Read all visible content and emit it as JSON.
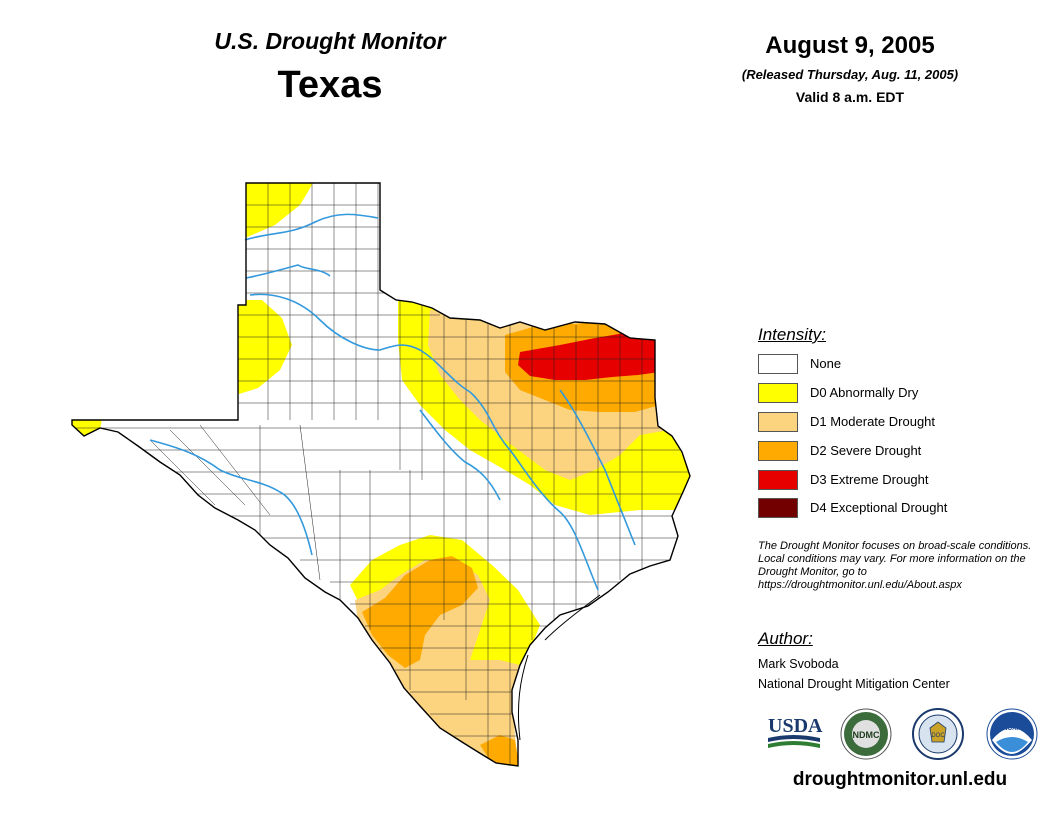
{
  "header": {
    "monitor_title": "U.S. Drought Monitor",
    "state": "Texas",
    "date": "August 9, 2005",
    "released": "(Released Thursday, Aug. 11, 2005)",
    "valid": "Valid 8 a.m. EDT"
  },
  "legend": {
    "title": "Intensity:",
    "items": [
      {
        "label": "None",
        "color": "#ffffff"
      },
      {
        "label": "D0 Abnormally Dry",
        "color": "#ffff00"
      },
      {
        "label": "D1 Moderate Drought",
        "color": "#fcd37f"
      },
      {
        "label": "D2 Severe Drought",
        "color": "#ffaa00"
      },
      {
        "label": "D3 Extreme Drought",
        "color": "#e60000"
      },
      {
        "label": "D4 Exceptional Drought",
        "color": "#730000"
      }
    ]
  },
  "note": "The Drought Monitor focuses on broad-scale conditions. Local conditions may vary. For more information on the Drought Monitor, go to https://droughtmonitor.unl.edu/About.aspx",
  "author": {
    "title": "Author:",
    "name": "Mark Svoboda",
    "org": "National Drought Mitigation Center"
  },
  "logos": {
    "usda": "USDA",
    "ndmc": "NDMC",
    "doc": "DOC",
    "noaa": "NOAA"
  },
  "website": "droughtmonitor.unl.edu",
  "colors": {
    "river": "#3399dd",
    "county_line": "#222222"
  }
}
